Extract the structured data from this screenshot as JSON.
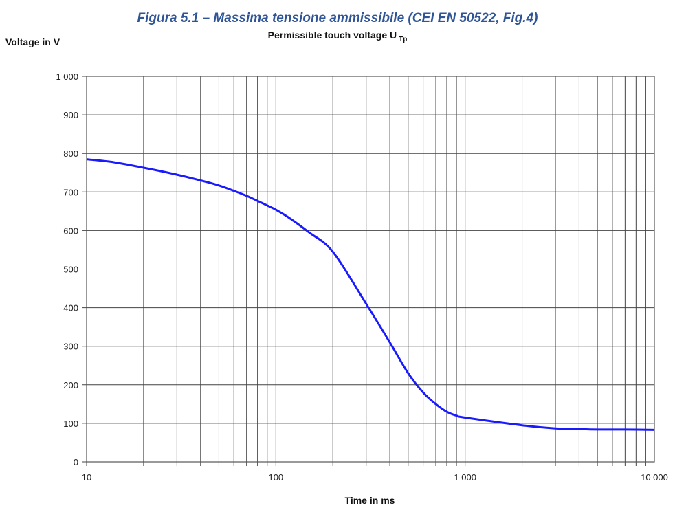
{
  "figure_caption": "Figura 5.1 – Massima tensione ammissibile (CEI EN 50522, Fig.4)",
  "chart_data": {
    "type": "line",
    "title": "Permissible touch voltage U",
    "title_subscript": "Tp",
    "xlabel": "Time in ms",
    "ylabel": "Voltage in V",
    "xscale": "log",
    "xlim": [
      10,
      10000
    ],
    "ylim": [
      0,
      1000
    ],
    "x_ticks": [
      10,
      100,
      1000,
      10000
    ],
    "x_tick_labels": [
      "10",
      "100",
      "1 000",
      "10 000"
    ],
    "y_ticks": [
      0,
      100,
      200,
      300,
      400,
      500,
      600,
      700,
      800,
      900,
      1000
    ],
    "y_tick_labels": [
      "0",
      "100",
      "200",
      "300",
      "400",
      "500",
      "600",
      "700",
      "800",
      "900",
      "1 000"
    ],
    "grid": true,
    "line_color": "#1a1aff",
    "series": [
      {
        "x": [
          10,
          14,
          20,
          30,
          40,
          50,
          60,
          70,
          80,
          90,
          100,
          120,
          150,
          200,
          300,
          400,
          500,
          600,
          700,
          800,
          900,
          1000,
          2000,
          3000,
          4000,
          5000,
          7000,
          10000
        ],
        "values": [
          785,
          777,
          763,
          745,
          730,
          717,
          703,
          690,
          677,
          665,
          654,
          630,
          595,
          545,
          410,
          310,
          230,
          180,
          150,
          130,
          120,
          115,
          95,
          87,
          85,
          84,
          84,
          83
        ]
      }
    ]
  }
}
